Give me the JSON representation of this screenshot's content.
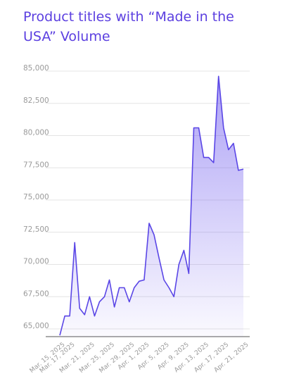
{
  "chart_data": {
    "type": "area",
    "title": "Product titles with “Made in the USA” Volume",
    "categories": [
      "Mar. 15, 2025",
      null,
      "Mar. 17, 2025",
      null,
      null,
      null,
      "Mar. 21, 2025",
      null,
      null,
      null,
      "Mar. 25, 2025",
      null,
      null,
      null,
      "Mar. 29, 2025",
      null,
      null,
      "Apr. 1, 2025",
      null,
      null,
      null,
      "Apr. 5, 2025",
      null,
      null,
      null,
      "Apr. 9, 2025",
      null,
      null,
      null,
      "Apr. 13, 2025",
      null,
      null,
      null,
      "Apr. 17, 2025",
      null,
      null,
      null,
      "Apr. 21, 2025"
    ],
    "values": [
      64500,
      66000,
      66000,
      71700,
      66600,
      66100,
      67500,
      66000,
      67100,
      67500,
      68800,
      66700,
      68200,
      68200,
      67100,
      68200,
      68700,
      68800,
      73200,
      72300,
      70500,
      68800,
      68200,
      67500,
      70000,
      71100,
      69300,
      80600,
      80600,
      78300,
      78300,
      77900,
      84600,
      80600,
      78900,
      79400,
      77300,
      77400
    ],
    "color": "#5a46e6",
    "ylim": [
      64400,
      85000
    ],
    "yticks": [
      {
        "value": 65000,
        "label": "65,000"
      },
      {
        "value": 67500,
        "label": "67,500"
      },
      {
        "value": 70000,
        "label": "70,000"
      },
      {
        "value": 72500,
        "label": "72,500"
      },
      {
        "value": 75000,
        "label": "75,000"
      },
      {
        "value": 77500,
        "label": "77,500"
      },
      {
        "value": 80000,
        "label": "80,000"
      },
      {
        "value": 82500,
        "label": "82,500"
      },
      {
        "value": 85000,
        "label": "85,000"
      }
    ],
    "grid": true
  }
}
